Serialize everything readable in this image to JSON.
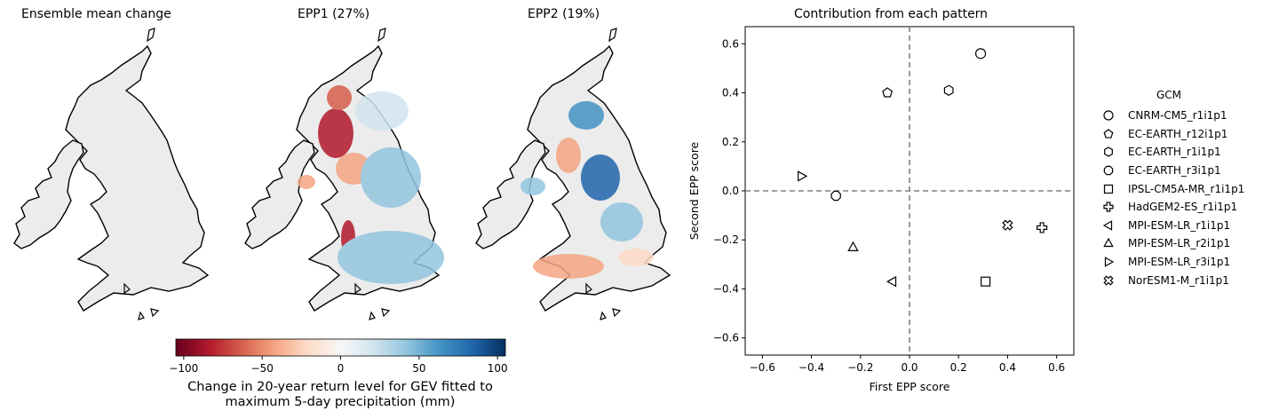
{
  "maps": [
    {
      "title": "Ensemble mean change"
    },
    {
      "title": "EPP1 (27%)"
    },
    {
      "title": "EPP2 (19%)"
    }
  ],
  "colorbar": {
    "ticks": [
      "−100",
      "−50",
      "0",
      "50",
      "100"
    ],
    "tick_values": [
      -100,
      -50,
      0,
      50,
      100
    ],
    "range": [
      -105,
      105
    ],
    "label_line1": "Change in 20-year return level for GEV fitted to",
    "label_line2": "maximum 5-day precipitation (mm)",
    "colormap": "RdBu"
  },
  "chart_data": {
    "type": "scatter",
    "title": "Contribution from each pattern",
    "xlabel": "First EPP score",
    "ylabel": "Second EPP score",
    "xlim": [
      -0.67,
      0.67
    ],
    "ylim": [
      -0.67,
      0.67
    ],
    "xticks": [
      "−0.6",
      "−0.4",
      "−0.2",
      "0.0",
      "0.2",
      "0.4",
      "0.6"
    ],
    "yticks": [
      "0.6",
      "0.4",
      "0.2",
      "0.0",
      "−0.2",
      "−0.4",
      "−0.6"
    ],
    "xtick_values": [
      -0.6,
      -0.4,
      -0.2,
      0.0,
      0.2,
      0.4,
      0.6
    ],
    "ytick_values": [
      0.6,
      0.4,
      0.2,
      0.0,
      -0.2,
      -0.4,
      -0.6
    ],
    "reference_lines": {
      "x": 0.0,
      "y": 0.0,
      "style": "dashed",
      "color": "#808080"
    },
    "grid": false,
    "legend_title": "GCM",
    "legend_position": "right",
    "points": [
      {
        "name": "CNRM-CM5_r1i1p1",
        "marker": "circle",
        "x": 0.29,
        "y": 0.56
      },
      {
        "name": "EC-EARTH_r12i1p1",
        "marker": "pentagon",
        "x": -0.09,
        "y": 0.4
      },
      {
        "name": "EC-EARTH_r1i1p1",
        "marker": "hexagon",
        "x": 0.16,
        "y": 0.41
      },
      {
        "name": "EC-EARTH_r3i1p1",
        "marker": "octagon",
        "x": -0.3,
        "y": -0.02
      },
      {
        "name": "IPSL-CM5A-MR_r1i1p1",
        "marker": "square",
        "x": 0.31,
        "y": -0.37
      },
      {
        "name": "HadGEM2-ES_r1i1p1",
        "marker": "plus",
        "x": 0.54,
        "y": -0.15
      },
      {
        "name": "MPI-ESM-LR_r1i1p1",
        "marker": "triangle-left",
        "x": -0.07,
        "y": -0.37
      },
      {
        "name": "MPI-ESM-LR_r2i1p1",
        "marker": "triangle-up",
        "x": -0.23,
        "y": -0.23
      },
      {
        "name": "MPI-ESM-LR_r3i1p1",
        "marker": "triangle-right",
        "x": -0.44,
        "y": 0.06
      },
      {
        "name": "NorESM1-M_r1i1p1",
        "marker": "x-filled",
        "x": 0.4,
        "y": -0.14
      }
    ]
  }
}
